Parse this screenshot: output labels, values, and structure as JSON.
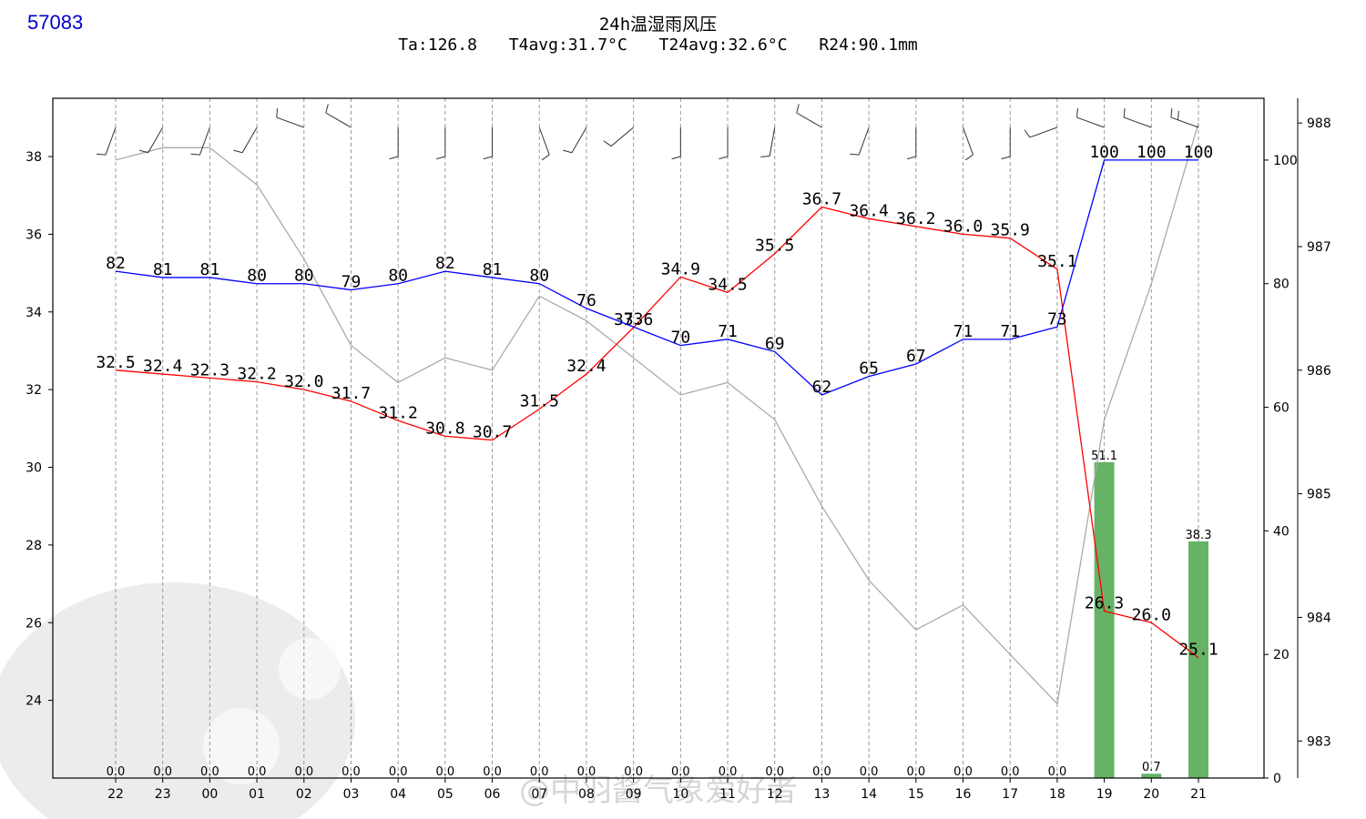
{
  "station_id": "57083",
  "title": "24h温湿雨风压",
  "subtitle": {
    "ta": "Ta:126.8",
    "t4avg": "T4avg:31.7°C",
    "t24avg": "T24avg:32.6°C",
    "r24": "R24:90.1mm"
  },
  "watermark": "@中羽酱气象爱好者",
  "chart_data": {
    "type": "line",
    "categories": [
      "22",
      "23",
      "00",
      "01",
      "02",
      "03",
      "04",
      "05",
      "06",
      "07",
      "08",
      "09",
      "10",
      "11",
      "12",
      "13",
      "14",
      "15",
      "16",
      "17",
      "18",
      "19",
      "20",
      "21"
    ],
    "temperature": {
      "color": "#ff0000",
      "values": [
        32.5,
        32.4,
        32.3,
        32.2,
        32.0,
        31.7,
        31.2,
        30.8,
        30.7,
        31.5,
        32.4,
        33.6,
        34.9,
        34.5,
        35.5,
        36.7,
        36.4,
        36.2,
        36.0,
        35.9,
        35.1,
        26.3,
        26.0,
        25.1
      ],
      "labels": [
        "32.5",
        "32.4",
        "32.3",
        "32.2",
        "32.0",
        "31.7",
        "31.2",
        "30.8",
        "30.7",
        "31.5",
        "32.4",
        "33.6",
        "34.9",
        "34.5",
        "35.5",
        "36.7",
        "36.4",
        "36.2",
        "36.0",
        "35.9",
        "35.1",
        "26.3",
        "26.0",
        "25.1"
      ]
    },
    "humidity": {
      "color": "#0000ff",
      "values": [
        82,
        81,
        81,
        80,
        80,
        79,
        80,
        82,
        81,
        80,
        76,
        73,
        70,
        71,
        69,
        62,
        65,
        67,
        71,
        71,
        73,
        100,
        100,
        100
      ],
      "labels": [
        "82",
        "81",
        "81",
        "80",
        "80",
        "79",
        "80",
        "82",
        "81",
        "80",
        "76",
        "73",
        "70",
        "71",
        "69",
        "62",
        "65",
        "67",
        "71",
        "71",
        "73",
        "100",
        "100",
        "100"
      ]
    },
    "pressure": {
      "color": "#aaaaaa",
      "values": [
        987.7,
        987.8,
        987.8,
        987.5,
        986.9,
        986.2,
        985.9,
        986.1,
        986.0,
        986.6,
        986.4,
        986.1,
        985.8,
        985.9,
        985.6,
        984.9,
        984.3,
        983.9,
        984.1,
        983.7,
        983.3,
        985.6,
        986.7,
        988.0
      ]
    },
    "rain": {
      "color": "#66b266",
      "values": [
        0.0,
        0.0,
        0.0,
        0.0,
        0.0,
        0.0,
        0.0,
        0.0,
        0.0,
        0.0,
        0.0,
        0.0,
        0.0,
        0.0,
        0.0,
        0.0,
        0.0,
        0.0,
        0.0,
        0.0,
        0.0,
        51.1,
        0.7,
        38.3
      ],
      "labels": [
        "0.0",
        "0.0",
        "0.0",
        "0.0",
        "0.0",
        "0.0",
        "0.0",
        "0.0",
        "0.0",
        "0.0",
        "0.0",
        "0.0",
        "0.0",
        "0.0",
        "0.0",
        "0.0",
        "0.0",
        "0.0",
        "0.0",
        "0.0",
        "0.0",
        "51.1",
        "0.7",
        "38.3"
      ]
    },
    "wind_dir_deg": [
      200,
      210,
      200,
      210,
      290,
      300,
      180,
      180,
      180,
      160,
      210,
      230,
      180,
      180,
      190,
      300,
      200,
      180,
      160,
      180,
      250,
      290,
      290,
      290
    ],
    "wind_speed_barbs": [
      1,
      1,
      1,
      1,
      1,
      1,
      1,
      1,
      1,
      1,
      1,
      1,
      1,
      1,
      1,
      1,
      1,
      1,
      1,
      1,
      1,
      1,
      1,
      2
    ],
    "y_left": {
      "ticks": [
        "24",
        "26",
        "28",
        "30",
        "32",
        "34",
        "36",
        "38"
      ],
      "range": [
        22.0,
        39.5
      ]
    },
    "y_right_humidity": {
      "ticks": [
        "0",
        "20",
        "40",
        "60",
        "80",
        "100"
      ],
      "range": [
        0,
        110
      ]
    },
    "y_right_pressure": {
      "ticks": [
        "983",
        "984",
        "985",
        "986",
        "987",
        "988"
      ],
      "range": [
        982.7,
        988.2
      ]
    },
    "grid": "vertical dashed"
  }
}
